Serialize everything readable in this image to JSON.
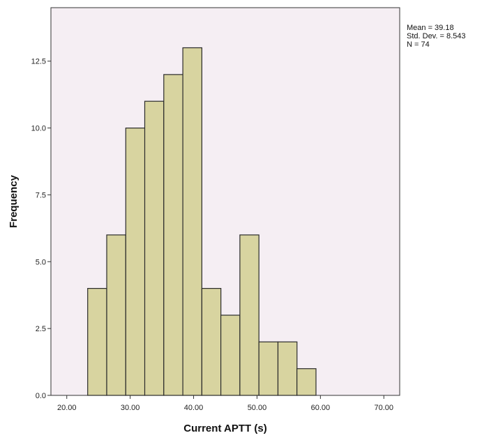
{
  "chart_data": {
    "type": "histogram",
    "title": "",
    "xlabel": "Current APTT (s)",
    "ylabel": "Frequency",
    "xlim": [
      17.5,
      72.5
    ],
    "ylim": [
      0,
      14.5
    ],
    "x_ticks": [
      20,
      30,
      40,
      50,
      60,
      70
    ],
    "x_tick_labels": [
      "20.00",
      "30.00",
      "40.00",
      "50.00",
      "60.00",
      "70.00"
    ],
    "y_ticks": [
      0,
      2.5,
      5,
      7.5,
      10,
      12.5
    ],
    "y_tick_labels": [
      "0.0",
      "2.5",
      "5.0",
      "7.5",
      "10.0",
      "12.5"
    ],
    "bins": [
      {
        "start": 23.3,
        "end": 26.3,
        "count": 4
      },
      {
        "start": 26.3,
        "end": 29.3,
        "count": 6
      },
      {
        "start": 29.3,
        "end": 32.3,
        "count": 10
      },
      {
        "start": 32.3,
        "end": 35.3,
        "count": 11
      },
      {
        "start": 35.3,
        "end": 38.3,
        "count": 12
      },
      {
        "start": 38.3,
        "end": 41.3,
        "count": 13
      },
      {
        "start": 41.3,
        "end": 44.3,
        "count": 4
      },
      {
        "start": 44.3,
        "end": 47.3,
        "count": 3
      },
      {
        "start": 47.3,
        "end": 50.3,
        "count": 6
      },
      {
        "start": 50.3,
        "end": 53.3,
        "count": 2
      },
      {
        "start": 53.3,
        "end": 56.3,
        "count": 2
      },
      {
        "start": 56.3,
        "end": 59.3,
        "count": 1
      }
    ],
    "stats": {
      "mean": "Mean = 39.18",
      "std": "Std. Dev. = 8.543",
      "n": "N = 74"
    },
    "grid": false,
    "colors": {
      "plot_background": "#f5eef3",
      "bar_fill": "#d8d4a0",
      "bar_stroke": "#2a2a2a",
      "axis": "#333333"
    }
  }
}
